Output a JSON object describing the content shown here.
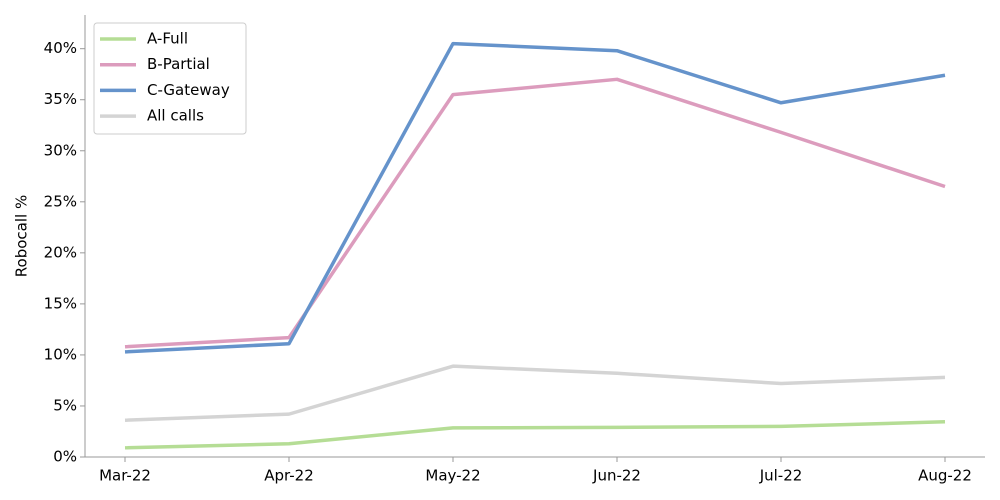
{
  "chart_data": {
    "type": "line",
    "y_label": "Robocall %",
    "categories": [
      "Mar-22",
      "Apr-22",
      "May-22",
      "Jun-22",
      "Jul-22",
      "Aug-22"
    ],
    "series": [
      {
        "name": "A-Full",
        "color": "#b5dd95",
        "values": [
          0.9,
          1.3,
          2.85,
          2.9,
          3.0,
          3.45
        ]
      },
      {
        "name": "B-Partial",
        "color": "#dc9cbd",
        "values": [
          10.8,
          11.7,
          35.5,
          37.0,
          31.8,
          26.5
        ]
      },
      {
        "name": "C-Gateway",
        "color": "#6593cb",
        "values": [
          10.3,
          11.1,
          40.5,
          39.8,
          34.7,
          37.4
        ]
      },
      {
        "name": "All calls",
        "color": "#d4d4d4",
        "values": [
          3.6,
          4.2,
          8.9,
          8.2,
          7.2,
          7.8
        ]
      }
    ],
    "ylim": [
      0,
      43.3
    ],
    "yticks": [
      {
        "value": 0,
        "label": "0%"
      },
      {
        "value": 5,
        "label": "5%"
      },
      {
        "value": 10,
        "label": "10%"
      },
      {
        "value": 15,
        "label": "15%"
      },
      {
        "value": 20,
        "label": "20%"
      },
      {
        "value": 25,
        "label": "25%"
      },
      {
        "value": 30,
        "label": "30%"
      },
      {
        "value": 35,
        "label": "35%"
      },
      {
        "value": 40,
        "label": "40%"
      }
    ],
    "legend": "upper-left"
  }
}
